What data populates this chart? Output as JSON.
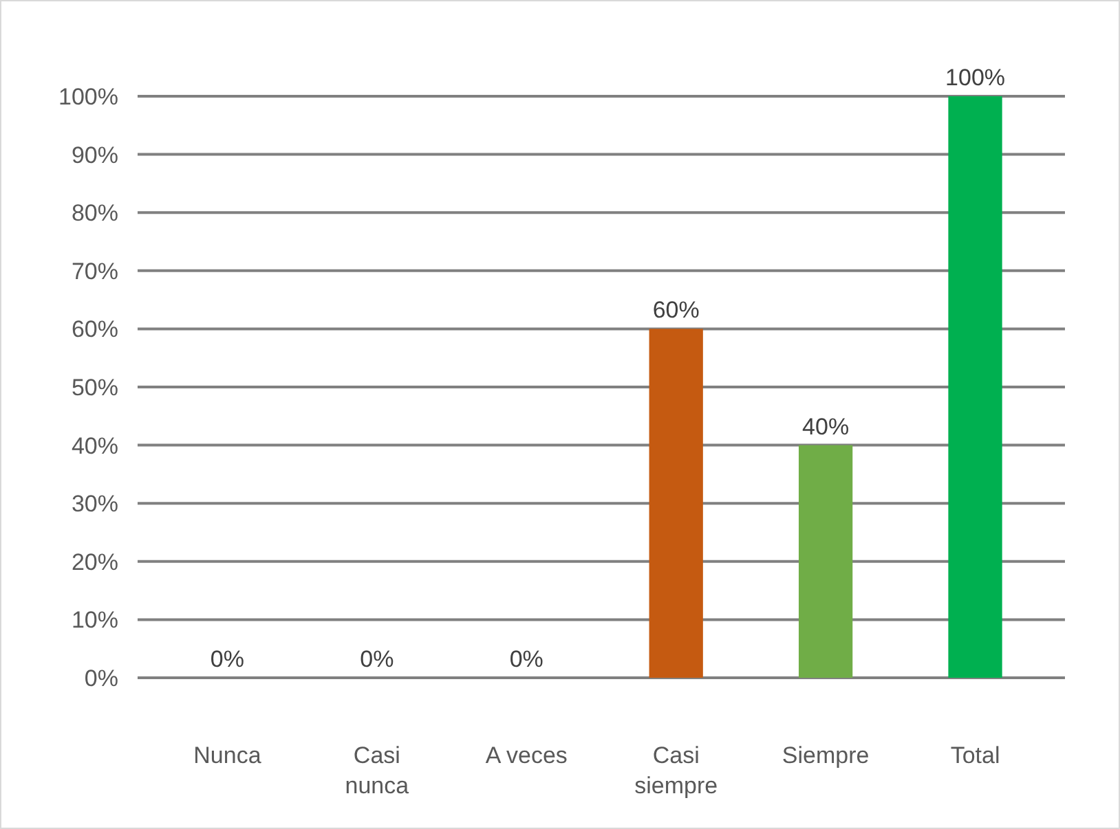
{
  "chart_data": {
    "type": "bar",
    "categories": [
      "Nunca",
      "Casi nunca",
      "A veces",
      "Casi siempre",
      "Siempre",
      "Total"
    ],
    "values": [
      0,
      0,
      0,
      60,
      40,
      100
    ],
    "colors": [
      "#c00000",
      "#c9866b",
      "#c8a84a",
      "#c55a11",
      "#70ad47",
      "#00b050"
    ],
    "value_labels": [
      "0%",
      "0%",
      "0%",
      "60%",
      "40%",
      "100%"
    ],
    "ylim": [
      0,
      100
    ],
    "yticks": [
      {
        "value": 0,
        "label": "0%"
      },
      {
        "value": 10,
        "label": "10%"
      },
      {
        "value": 20,
        "label": "20%"
      },
      {
        "value": 30,
        "label": "30%"
      },
      {
        "value": 40,
        "label": "40%"
      },
      {
        "value": 50,
        "label": "50%"
      },
      {
        "value": 60,
        "label": "60%"
      },
      {
        "value": 70,
        "label": "70%"
      },
      {
        "value": 80,
        "label": "80%"
      },
      {
        "value": 90,
        "label": "90%"
      },
      {
        "value": 100,
        "label": "100%"
      }
    ],
    "grid": "y"
  }
}
